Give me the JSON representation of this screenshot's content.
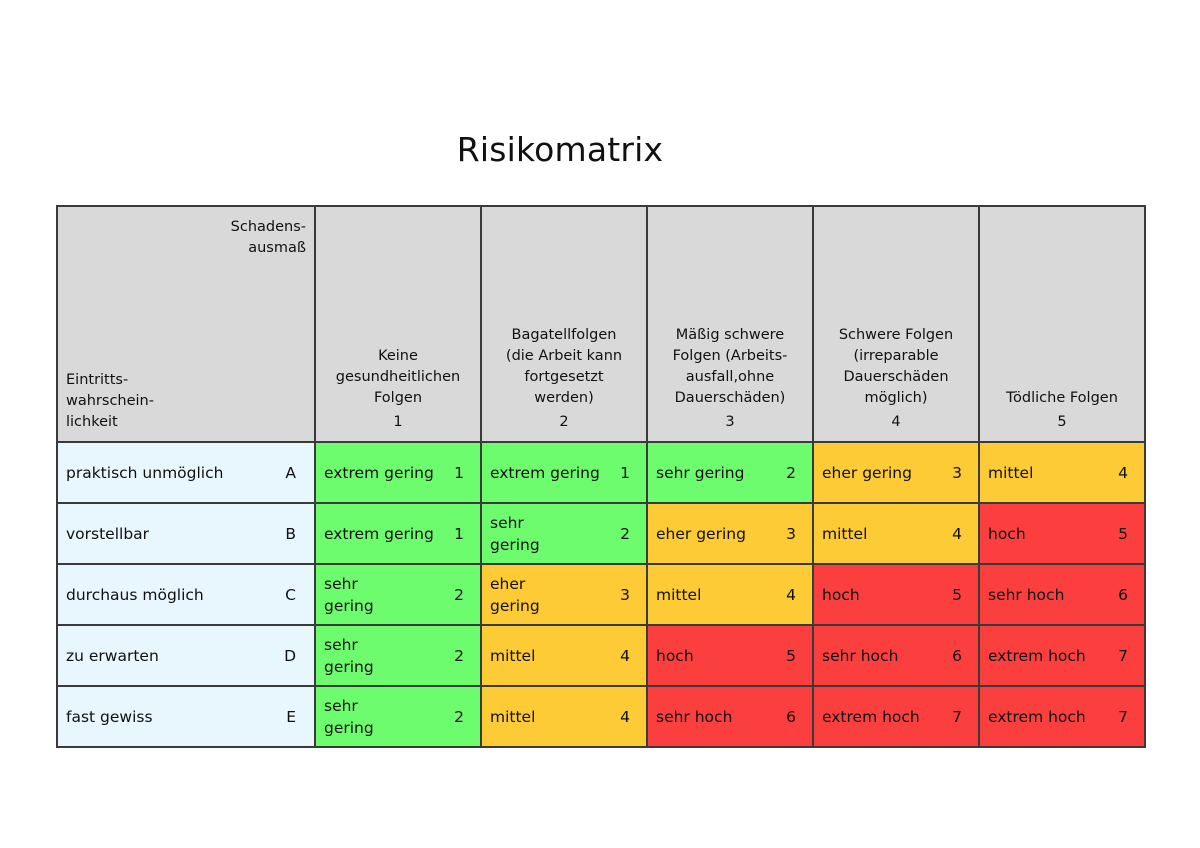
{
  "title": "Risikomatrix",
  "corner": {
    "severity_axis": "Schadens-\nausmaß",
    "likelihood_axis": "Eintritts-\nwahrschein-\nlichkeit"
  },
  "severity_levels": [
    {
      "label": "Keine\ngesundheitlichen\nFolgen",
      "number": "1"
    },
    {
      "label": "Bagatellfolgen\n(die Arbeit kann\nfortgesetzt\nwerden)",
      "number": "2"
    },
    {
      "label": "Mäßig schwere\nFolgen (Arbeits-\nausfall,ohne\nDauerschäden)",
      "number": "3"
    },
    {
      "label": "Schwere Folgen\n(irreparable\nDauerschäden\nmöglich)",
      "number": "4"
    },
    {
      "label": "Tödliche Folgen",
      "number": "5"
    }
  ],
  "colors": {
    "green": "#6dfc6d",
    "amber": "#fdcb35",
    "red": "#fb3f3f",
    "header_gray": "#d9d9d9",
    "row_label_bg": "#e8f6fd"
  },
  "rows": [
    {
      "label": "praktisch unmöglich",
      "letter": "A",
      "cells": [
        {
          "text": "extrem gering",
          "score": "1",
          "level": "green"
        },
        {
          "text": "extrem gering",
          "score": "1",
          "level": "green"
        },
        {
          "text": "sehr gering",
          "score": "2",
          "level": "green"
        },
        {
          "text": "eher gering",
          "score": "3",
          "level": "amber"
        },
        {
          "text": "mittel",
          "score": "4",
          "level": "amber"
        }
      ]
    },
    {
      "label": "vorstellbar",
      "letter": "B",
      "cells": [
        {
          "text": "extrem gering",
          "score": "1",
          "level": "green"
        },
        {
          "text": "sehr\ngering",
          "score": "2",
          "level": "green"
        },
        {
          "text": "eher gering",
          "score": "3",
          "level": "amber"
        },
        {
          "text": "mittel",
          "score": "4",
          "level": "amber"
        },
        {
          "text": "hoch",
          "score": "5",
          "level": "red"
        }
      ]
    },
    {
      "label": "durchaus möglich",
      "letter": "C",
      "cells": [
        {
          "text": "sehr\ngering",
          "score": "2",
          "level": "green"
        },
        {
          "text": "eher\ngering",
          "score": "3",
          "level": "amber"
        },
        {
          "text": "mittel",
          "score": "4",
          "level": "amber"
        },
        {
          "text": "hoch",
          "score": "5",
          "level": "red"
        },
        {
          "text": "sehr hoch",
          "score": "6",
          "level": "red"
        }
      ]
    },
    {
      "label": "zu erwarten",
      "letter": "D",
      "cells": [
        {
          "text": "sehr\ngering",
          "score": "2",
          "level": "green"
        },
        {
          "text": "mittel",
          "score": "4",
          "level": "amber"
        },
        {
          "text": "hoch",
          "score": "5",
          "level": "red"
        },
        {
          "text": "sehr hoch",
          "score": "6",
          "level": "red"
        },
        {
          "text": "extrem hoch",
          "score": "7",
          "level": "red"
        }
      ]
    },
    {
      "label": "fast gewiss",
      "letter": "E",
      "cells": [
        {
          "text": "sehr\ngering",
          "score": "2",
          "level": "green"
        },
        {
          "text": "mittel",
          "score": "4",
          "level": "amber"
        },
        {
          "text": "sehr hoch",
          "score": "6",
          "level": "red"
        },
        {
          "text": "extrem hoch",
          "score": "7",
          "level": "red"
        },
        {
          "text": "extrem hoch",
          "score": "7",
          "level": "red"
        }
      ]
    }
  ]
}
